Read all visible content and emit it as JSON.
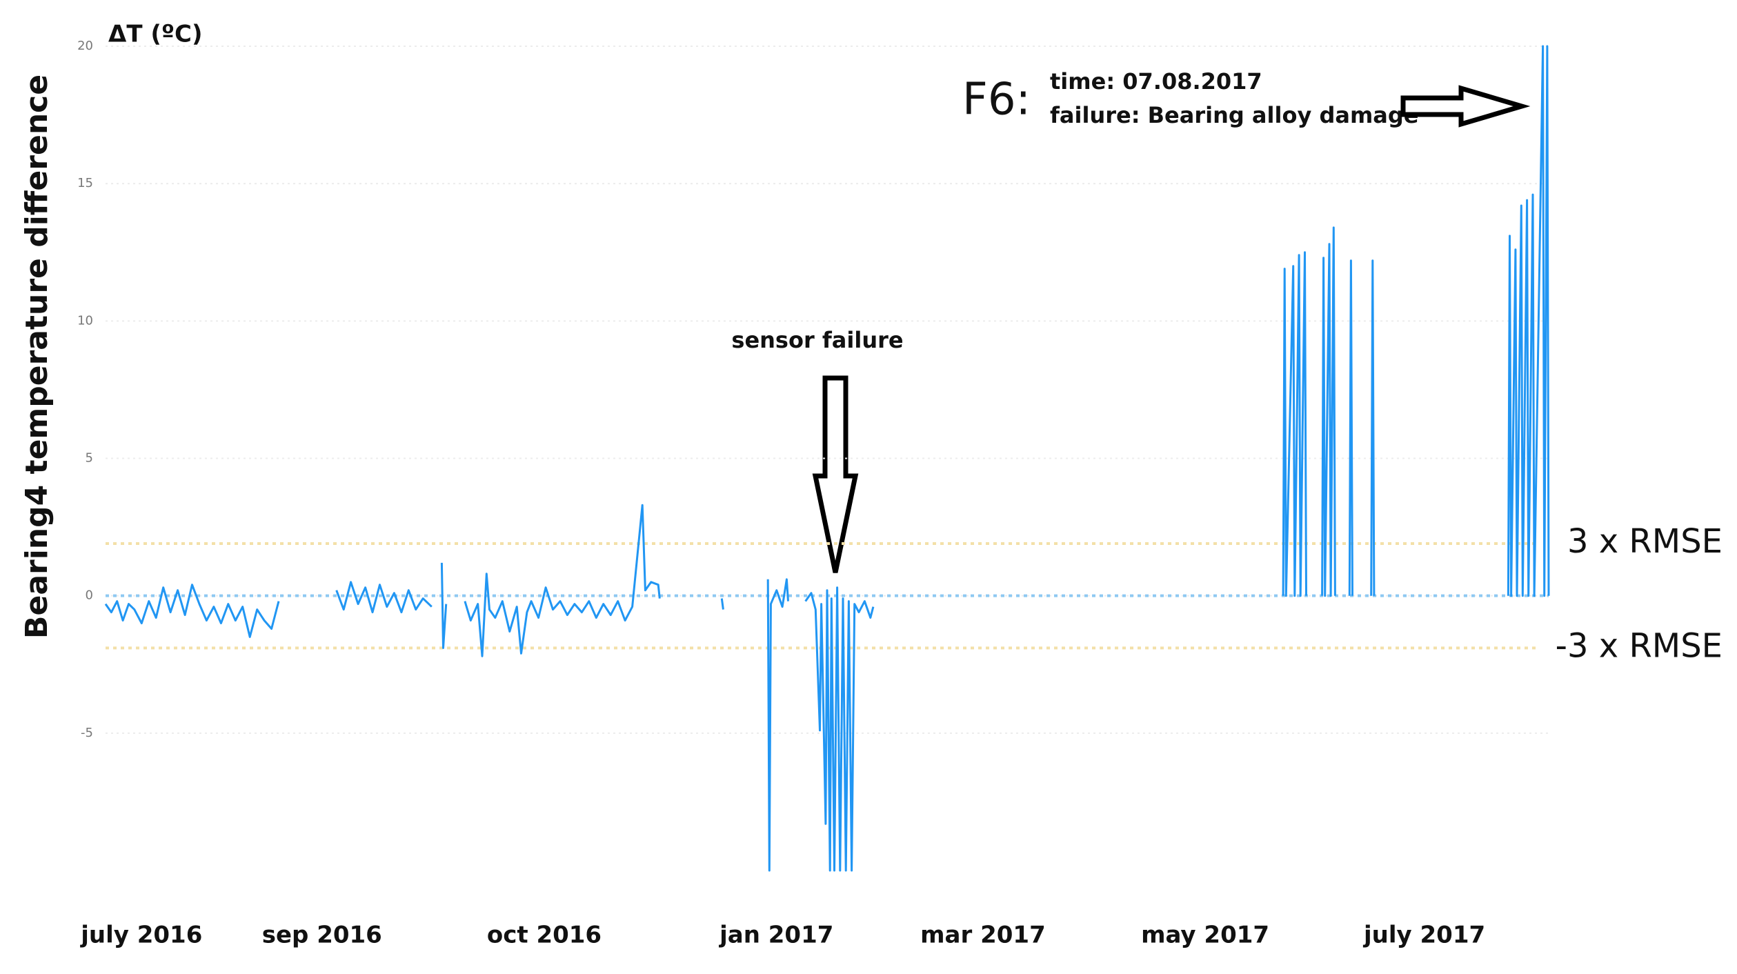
{
  "chart_data": {
    "type": "line",
    "y_label": "Bearing4 temperature difference",
    "unit_label": "ΔT (ºC)",
    "color": "#2196f3",
    "grid": true,
    "xlim": [
      0,
      100
    ],
    "xticks": [
      {
        "value": 2.5,
        "label": "july 2016"
      },
      {
        "value": 15.0,
        "label": "sep 2016"
      },
      {
        "value": 30.4,
        "label": "oct 2016"
      },
      {
        "value": 46.5,
        "label": "jan 2017"
      },
      {
        "value": 60.8,
        "label": "mar 2017"
      },
      {
        "value": 76.2,
        "label": "may 2017"
      },
      {
        "value": 91.4,
        "label": "july 2017"
      }
    ],
    "ylim": [
      -10,
      20
    ],
    "yticks": [
      -5,
      0,
      5,
      10,
      15,
      20
    ],
    "reference_lines": [
      {
        "value": 1.9,
        "label": "3 x RMSE",
        "color": "#f3e0a8"
      },
      {
        "value": -1.9,
        "label": "-3 x RMSE",
        "color": "#f3e0a8"
      }
    ],
    "annotations": {
      "sensor_failure": "sensor failure",
      "f6_label": "F6:",
      "f6_time": "time: 07.08.2017",
      "f6_failure": "failure: Bearing alloy damage"
    },
    "x": [
      0,
      0.4,
      0.8,
      1.2,
      1.6,
      2,
      2.5,
      3,
      3.5,
      4,
      4.5,
      5,
      5.5,
      6,
      6.5,
      7,
      7.5,
      8,
      8.5,
      9,
      9.5,
      10,
      10.5,
      11,
      11.5,
      12,
      null,
      16,
      16.5,
      17,
      17.5,
      18,
      18.5,
      19,
      19.5,
      20,
      20.5,
      21,
      21.5,
      22,
      22.6,
      null,
      23.3,
      23.4,
      23.6,
      null,
      24.9,
      25.3,
      25.8,
      26.1,
      26.4,
      26.6,
      27,
      27.5,
      28,
      28.5,
      28.8,
      29.2,
      29.5,
      30,
      30.5,
      31,
      31.5,
      32,
      32.5,
      33,
      33.5,
      34,
      34.5,
      35,
      35.5,
      36,
      36.5,
      37.2,
      37.4,
      37.8,
      38.3,
      38.4,
      null,
      42.7,
      42.8,
      null,
      45.9,
      46.0,
      46.1,
      46.5,
      46.9,
      47.2,
      47.3,
      null,
      48.5,
      48.9,
      49.2,
      49.5,
      49.6,
      49.9,
      50.0,
      50.2,
      50.3,
      50.5,
      50.7,
      50.9,
      51.1,
      51.3,
      51.5,
      51.7,
      51.9,
      52.2,
      52.6,
      53,
      53.2,
      null,
      81.6,
      81.7,
      81.8,
      82.3,
      82.4,
      82.7,
      82.8,
      83.1,
      83.2,
      null,
      84.3,
      84.4,
      84.5,
      84.8,
      84.9,
      85.1,
      85.2,
      null,
      86.2,
      86.3,
      86.4,
      null,
      87.7,
      87.8,
      87.9,
      null,
      97.2,
      97.3,
      97.4,
      97.7,
      97.8,
      98.1,
      98.2,
      98.5,
      98.6,
      98.9,
      99.0,
      99.6,
      99.7,
      99.9,
      100
    ],
    "values": [
      -0.3,
      -0.6,
      -0.2,
      -0.9,
      -0.3,
      -0.5,
      -1.0,
      -0.2,
      -0.8,
      0.3,
      -0.6,
      0.2,
      -0.7,
      0.4,
      -0.3,
      -0.9,
      -0.4,
      -1.0,
      -0.3,
      -0.9,
      -0.4,
      -1.5,
      -0.5,
      -0.9,
      -1.2,
      -0.2,
      null,
      0.2,
      -0.5,
      0.5,
      -0.3,
      0.3,
      -0.6,
      0.4,
      -0.4,
      0.1,
      -0.6,
      0.2,
      -0.5,
      -0.1,
      -0.4,
      null,
      1.2,
      -1.9,
      -0.3,
      null,
      -0.2,
      -0.9,
      -0.3,
      -2.2,
      0.8,
      -0.5,
      -0.8,
      -0.2,
      -1.3,
      -0.4,
      -2.1,
      -0.6,
      -0.2,
      -0.8,
      0.3,
      -0.5,
      -0.2,
      -0.7,
      -0.3,
      -0.6,
      -0.2,
      -0.8,
      -0.3,
      -0.7,
      -0.2,
      -0.9,
      -0.4,
      3.3,
      0.2,
      0.5,
      0.4,
      -0.1,
      null,
      -0.1,
      -0.5,
      null,
      0.6,
      -10,
      -0.3,
      0.2,
      -0.4,
      0.6,
      -0.2,
      null,
      -0.2,
      0.1,
      -0.5,
      -4.9,
      -0.3,
      -8.3,
      0.2,
      -10,
      -0.1,
      -10,
      0.3,
      -10,
      -0.1,
      -10,
      -0.2,
      -10,
      -0.3,
      -0.6,
      -0.2,
      -0.8,
      -0.4,
      null,
      0,
      11.9,
      0,
      12.0,
      0,
      12.4,
      0,
      12.5,
      0,
      null,
      0,
      12.3,
      0,
      12.8,
      0,
      13.4,
      0,
      null,
      0,
      12.2,
      0,
      null,
      0,
      12.2,
      0,
      null,
      0,
      13.1,
      0,
      12.6,
      0,
      14.2,
      0,
      14.4,
      0,
      14.6,
      0,
      20,
      0,
      20,
      0
    ]
  }
}
